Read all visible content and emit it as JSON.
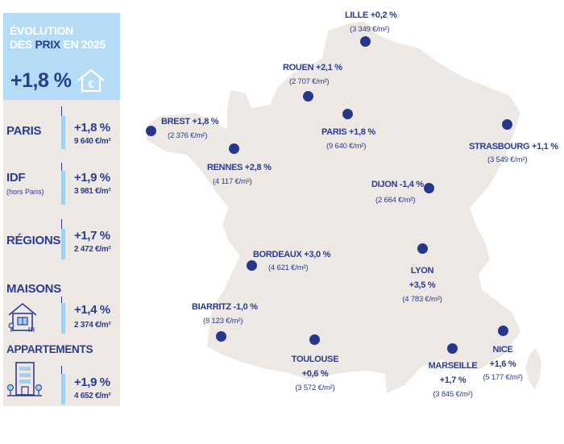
{
  "panel": {
    "title_line1": "ÉVOLUTION",
    "title_line2_pre": "DES ",
    "title_line2_hl": "PRIX",
    "title_line2_post": " EN 2025",
    "national_change": "+1,8 %",
    "hero_icon": "house-euro-icon",
    "rows": [
      {
        "label": "PARIS",
        "sub": "",
        "change": "+1,8 %",
        "price": "9 640 €/m²"
      },
      {
        "label": "IDF",
        "sub": "(hors Paris)",
        "change": "+1,9 %",
        "price": "3 981 €/m²"
      },
      {
        "label": "RÉGIONS",
        "sub": "",
        "change": "+1,7 %",
        "price": "2 472 €/m²"
      },
      {
        "label": "MAISONS",
        "sub": "",
        "change": "+1,4 %",
        "price": "2 374 €/m²",
        "icon": "house-icon"
      },
      {
        "label": "APPARTEMENTS",
        "sub": "",
        "change": "+1,9 %",
        "price": "4 652 €/m²",
        "icon": "apartment-building-icon"
      }
    ]
  },
  "cities": [
    {
      "id": "lille",
      "name": "LILLE +0,2 %",
      "price": "(3 349 €/m²)"
    },
    {
      "id": "rouen",
      "name": "ROUEN +2,1 %",
      "price": "(2 707 €/m²)"
    },
    {
      "id": "brest",
      "name": "BREST +1,8 %",
      "price": "(2 376 €/m²)"
    },
    {
      "id": "paris",
      "name": "PARIS +1,8 %",
      "price": "(9 640 €/m²)"
    },
    {
      "id": "strasbourg",
      "name": "STRASBOURG  +1,1 %",
      "price": "(3 549 €/m²)"
    },
    {
      "id": "rennes",
      "name": "RENNES +2,8 %",
      "price": "(4 117 €/m²)"
    },
    {
      "id": "dijon",
      "name": "DIJON -1,4 %",
      "price": "(2 664 €/m²)"
    },
    {
      "id": "bordeaux",
      "name": "BORDEAUX +3,0 %",
      "price": "(4 621 €/m²)"
    },
    {
      "id": "lyon",
      "name1": "LYON",
      "name2": "+3,5 %",
      "price": "(4 783 €/m²)"
    },
    {
      "id": "biarritz",
      "name": "BIARRITZ -1,0 %",
      "price": "(8 123 €/m²)"
    },
    {
      "id": "toulouse",
      "name1": "TOULOUSE",
      "name2": "+0,6 %",
      "price": "(3 572 €/m²)"
    },
    {
      "id": "marseille",
      "name1": "MARSEILLE",
      "name2": "+1,7 %",
      "price": "(3 845 €/m²)"
    },
    {
      "id": "nice",
      "name1": "NICE",
      "name2": "+1,6 %",
      "price": "(5 177 €/m²)"
    }
  ],
  "colors": {
    "navy": "#2a3c8f",
    "light_blue": "#b5dcf6",
    "panel_bg": "#ede8e3",
    "map_fill": "#ede8e3"
  }
}
